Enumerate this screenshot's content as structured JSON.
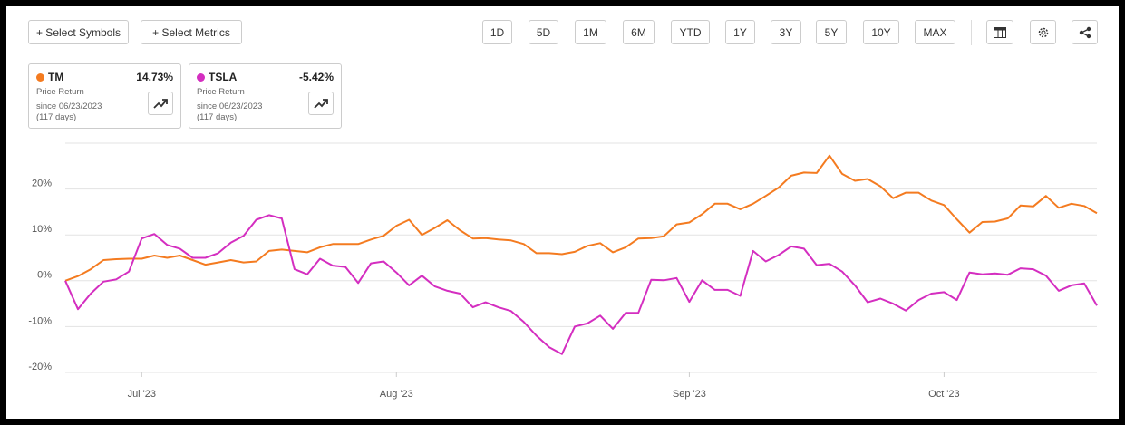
{
  "toolbar": {
    "symbols": "+ Select Symbols",
    "metrics": "+ Select Metrics",
    "ranges": [
      "1D",
      "5D",
      "1M",
      "6M",
      "YTD",
      "1Y",
      "3Y",
      "5Y",
      "10Y",
      "MAX"
    ]
  },
  "cards": [
    {
      "return": "14.73%",
      "metric": "Price Return",
      "since": "since 06/23/2023",
      "days": "(117 days)"
    },
    {
      "return": "-5.42%",
      "metric": "Price Return",
      "since": "since 06/23/2023",
      "days": "(117 days)"
    }
  ],
  "chart_data": {
    "type": "line",
    "categories": [
      null,
      null,
      null,
      null,
      null,
      null,
      "Jul '23",
      null,
      null,
      null,
      null,
      null,
      null,
      null,
      null,
      null,
      null,
      null,
      null,
      null,
      null,
      null,
      null,
      null,
      null,
      null,
      "Aug '23",
      null,
      null,
      null,
      null,
      null,
      null,
      null,
      null,
      null,
      null,
      null,
      null,
      null,
      null,
      null,
      null,
      null,
      null,
      null,
      null,
      null,
      null,
      "Sep '23",
      null,
      null,
      null,
      null,
      null,
      null,
      null,
      null,
      null,
      null,
      null,
      null,
      null,
      null,
      null,
      null,
      null,
      null,
      null,
      "Oct '23",
      null,
      null,
      null,
      null,
      null,
      null,
      null,
      null,
      null,
      null,
      null,
      null
    ],
    "series": [
      {
        "name": "TM",
        "color": "#f47b20",
        "values": [
          0,
          1,
          2.5,
          4.5,
          4.7,
          4.8,
          4.8,
          5.5,
          5,
          5.5,
          4.5,
          3.5,
          4,
          4.5,
          4,
          4.2,
          6.5,
          6.8,
          6.5,
          6.2,
          7.3,
          8,
          8,
          8,
          9,
          9.8,
          12,
          13.3,
          10,
          11.5,
          13.2,
          11,
          9.2,
          9.3,
          9,
          8.8,
          8,
          6,
          6,
          5.8,
          6.3,
          7.6,
          8.2,
          6.2,
          7.3,
          9.2,
          9.3,
          9.7,
          12.3,
          12.7,
          14.5,
          16.8,
          16.8,
          15.6,
          16.8,
          18.5,
          20.3,
          22.9,
          23.6,
          23.5,
          27.3,
          23.3,
          21.8,
          22.2,
          20.6,
          18,
          19.2,
          19.2,
          17.5,
          16.5,
          13.4,
          10.5,
          12.8,
          12.9,
          13.6,
          16.4,
          16.2,
          18.5,
          15.9,
          16.8,
          16.3,
          14.73
        ]
      },
      {
        "name": "TSLA",
        "color": "#d42ec0",
        "values": [
          0,
          -6.2,
          -2.8,
          -0.2,
          0.3,
          2,
          9.2,
          10.2,
          7.8,
          7,
          5,
          5,
          6,
          8.3,
          9.8,
          13.3,
          14.3,
          13.6,
          2.5,
          1.4,
          4.8,
          3.3,
          3,
          -0.5,
          3.8,
          4.2,
          1.8,
          -1,
          1.1,
          -1.2,
          -2.2,
          -2.8,
          -5.8,
          -4.7,
          -5.8,
          -6.6,
          -9,
          -12,
          -14.5,
          -16,
          -10,
          -9.3,
          -7.6,
          -10.5,
          -7,
          -7,
          0.2,
          0.1,
          0.6,
          -4.6,
          0.1,
          -2,
          -2,
          -3.3,
          6.5,
          4.2,
          5.6,
          7.5,
          7,
          3.4,
          3.7,
          2,
          -1,
          -4.7,
          -3.9,
          -5,
          -6.5,
          -4.2,
          -2.8,
          -2.5,
          -4.2,
          1.8,
          1.4,
          1.6,
          1.3,
          2.7,
          2.5,
          1.1,
          -2.2,
          -1,
          -0.6,
          -5.42
        ]
      }
    ],
    "ylim": [
      -20,
      30
    ],
    "yticks": [
      {
        "value": -20,
        "label": "-20%"
      },
      {
        "value": -10,
        "label": "-10%"
      },
      {
        "value": 0,
        "label": "0%"
      },
      {
        "value": 10,
        "label": "10%"
      },
      {
        "value": 20,
        "label": "20%"
      }
    ],
    "grid": true
  }
}
